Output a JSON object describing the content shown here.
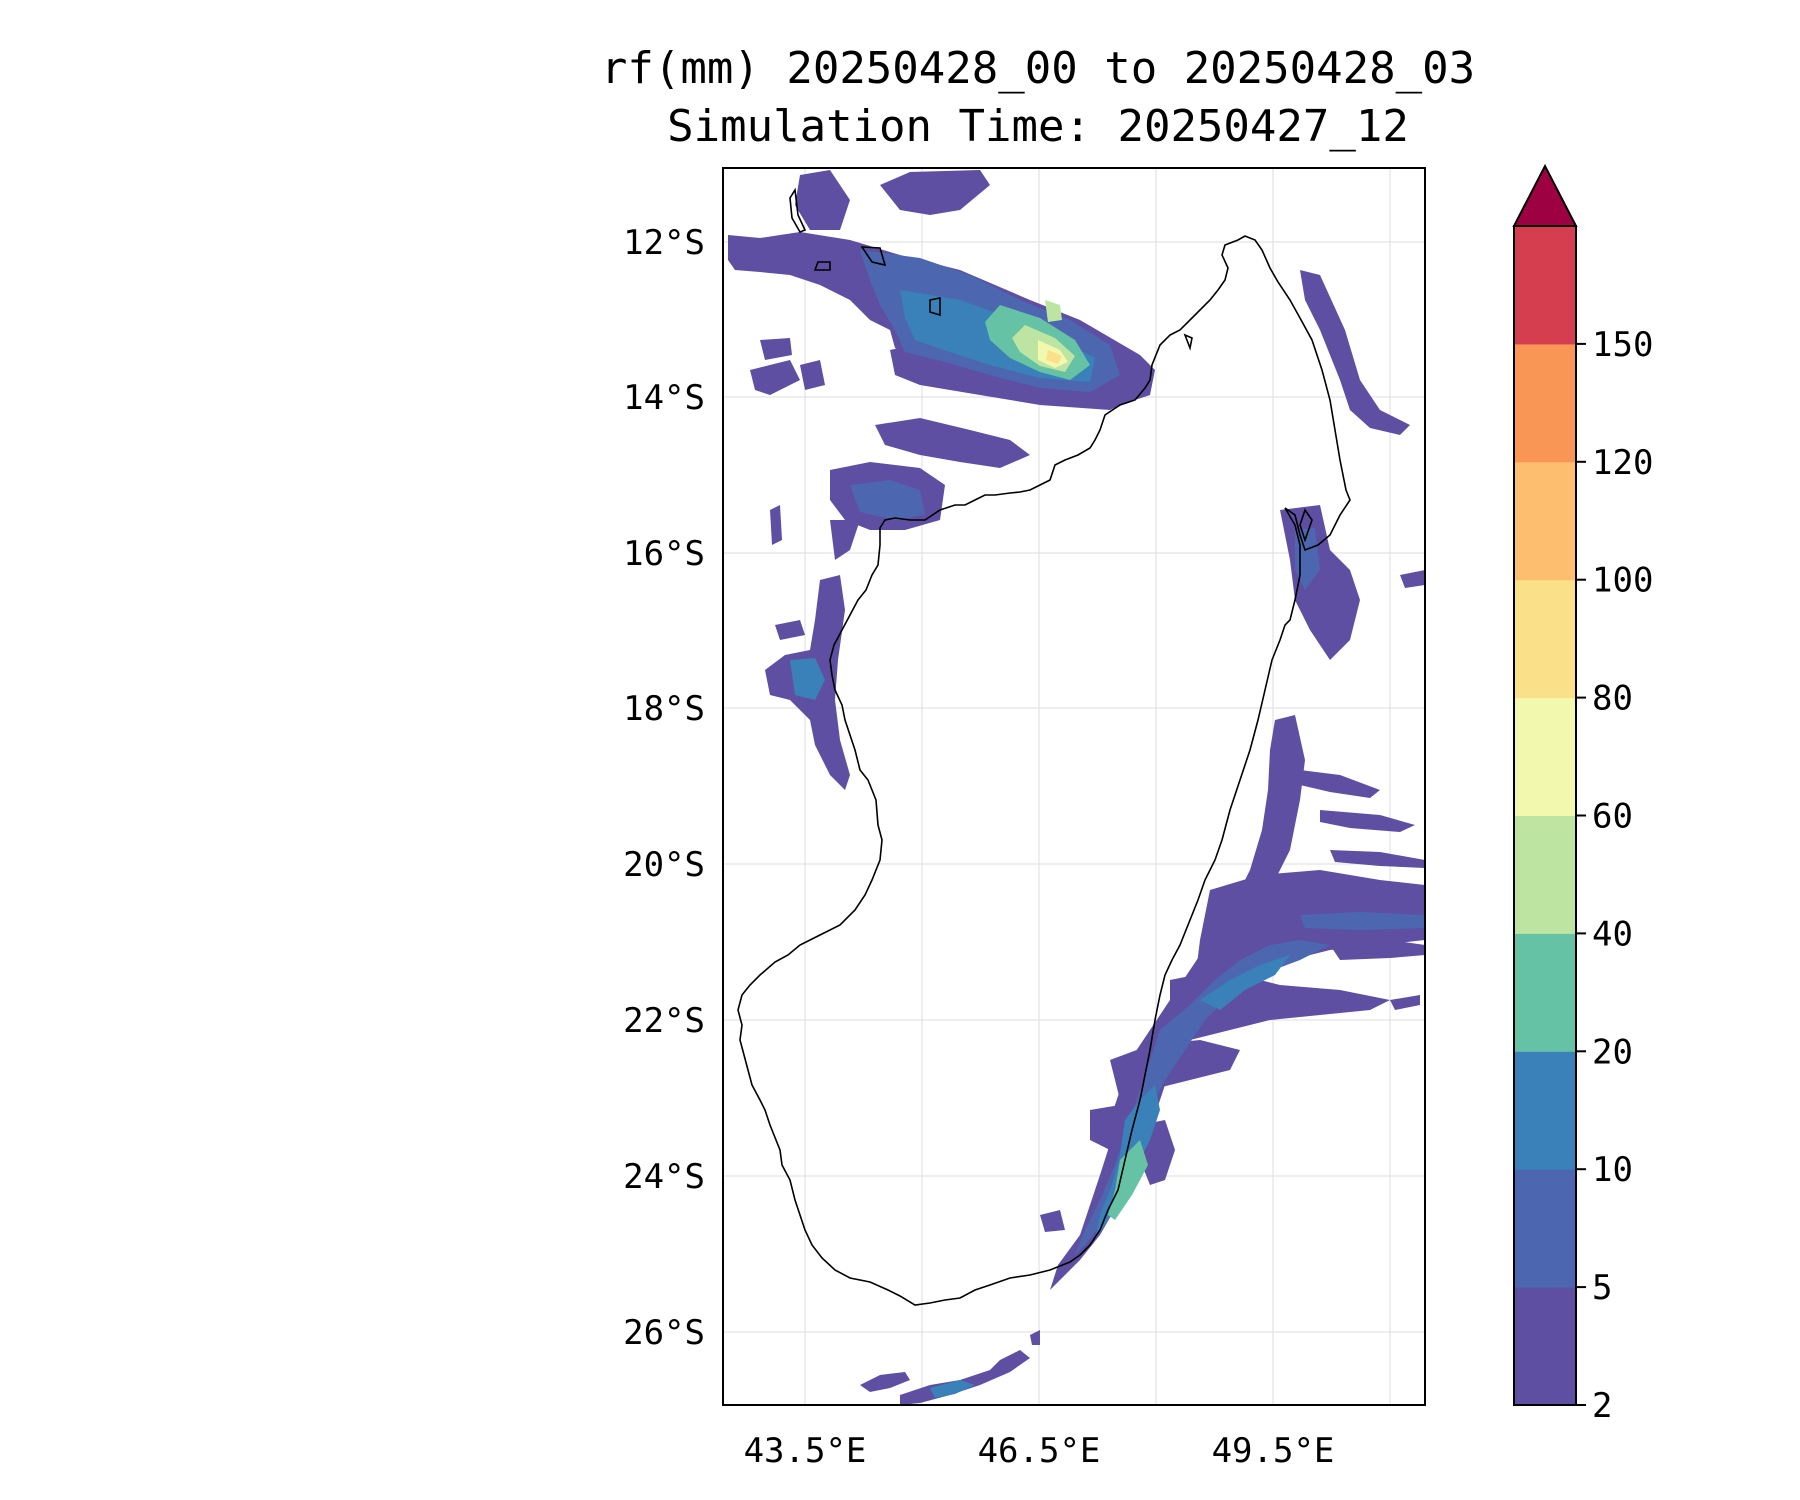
{
  "title_line1": "rf(mm) 20250428_00 to 20250428_03",
  "title_line2": "Simulation Time: 20250427_12",
  "map": {
    "lat_labels": [
      "12°S",
      "14°S",
      "16°S",
      "18°S",
      "20°S",
      "22°S",
      "24°S",
      "26°S"
    ],
    "lon_labels": [
      "43.5°E",
      "46.5°E",
      "49.5°E"
    ],
    "region": "Madagascar"
  },
  "colorbar": {
    "ticks": [
      "2",
      "5",
      "10",
      "20",
      "40",
      "60",
      "80",
      "100",
      "120",
      "150"
    ],
    "colors": [
      "#5e4fa2",
      "#4c67b0",
      "#3a81ba",
      "#66c2a5",
      "#bde4a1",
      "#f2f8ad",
      "#fbe08a",
      "#fdbf6f",
      "#f99555",
      "#d53e4f"
    ],
    "extend_color": "#9e0142",
    "extend": "max"
  },
  "colors": {
    "frame": "#000000",
    "coastline": "#000000",
    "grid": "#dddddd"
  }
}
